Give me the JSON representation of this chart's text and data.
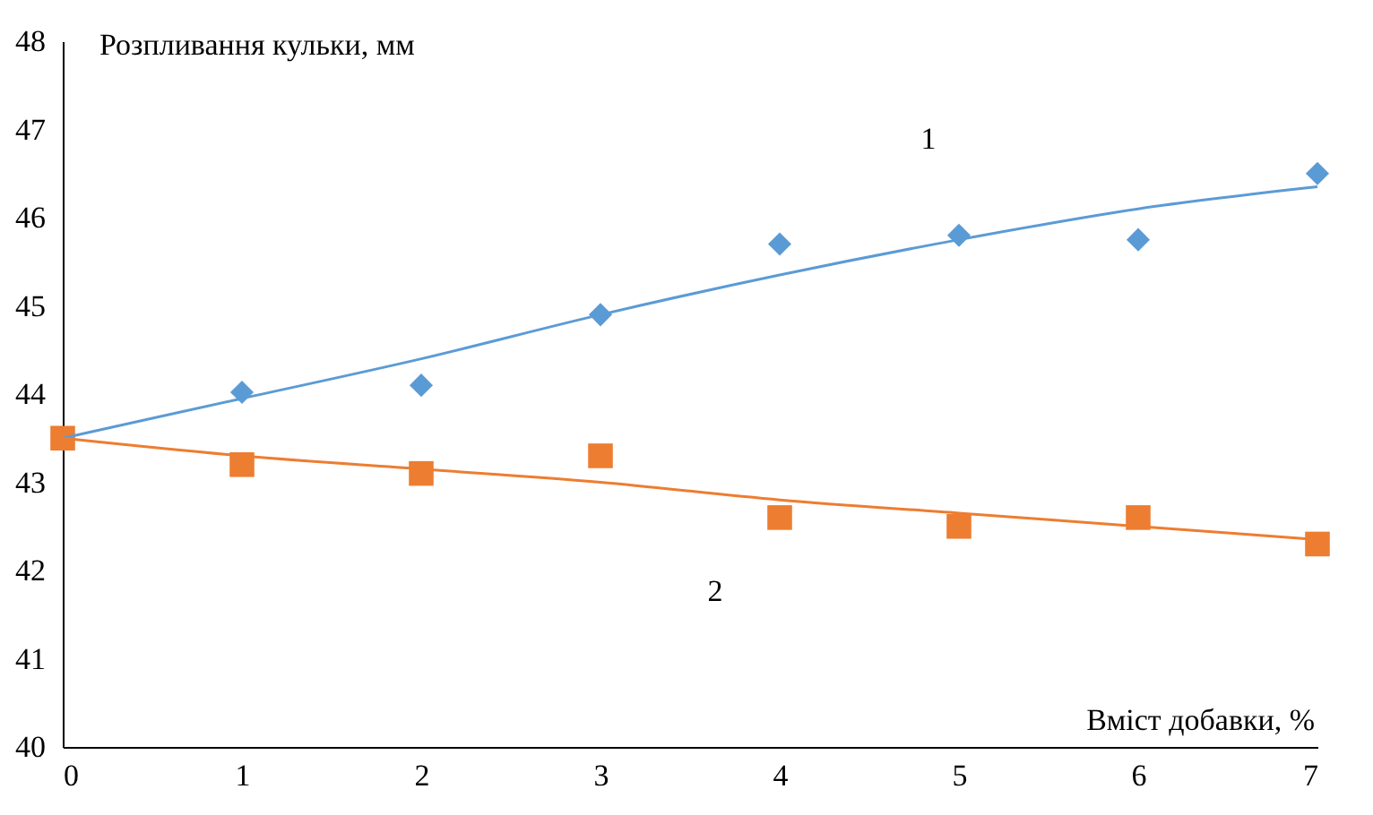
{
  "chart_data": {
    "type": "scatter",
    "xlabel": "Вміст добавки, %",
    "ylabel": "Розпливання кульки, мм",
    "x": [
      0,
      1,
      2,
      3,
      4,
      5,
      6,
      7
    ],
    "series": [
      {
        "marker": "diamond",
        "color": "#5b9bd5",
        "values": [
          null,
          44.02,
          44.1,
          44.9,
          45.7,
          45.8,
          45.75,
          46.5
        ]
      },
      {
        "marker": "square",
        "color": "#ed7d31",
        "values": [
          43.5,
          43.2,
          43.1,
          43.3,
          42.6,
          42.5,
          42.6,
          42.3
        ]
      },
      {
        "type": "line",
        "marker": "none",
        "color": "#5b9bd5",
        "x": [
          0,
          1,
          2,
          3,
          4,
          5,
          6,
          7
        ],
        "values": [
          43.5,
          43.95,
          44.4,
          44.9,
          45.35,
          45.75,
          46.1,
          46.35
        ]
      },
      {
        "type": "line",
        "marker": "none",
        "color": "#ed7d31",
        "x": [
          0,
          1,
          2,
          3,
          4,
          5,
          6,
          7
        ],
        "values": [
          43.5,
          43.3,
          43.15,
          43.0,
          42.8,
          42.65,
          42.5,
          42.35
        ]
      }
    ],
    "annotations": [
      "1",
      "2"
    ],
    "xlim": [
      0,
      7
    ],
    "xticks": [
      0,
      1,
      2,
      3,
      4,
      5,
      6,
      7
    ],
    "ylim": [
      40,
      48
    ],
    "yticks": [
      40,
      41,
      42,
      43,
      44,
      45,
      46,
      47,
      48
    ],
    "grid": false
  }
}
